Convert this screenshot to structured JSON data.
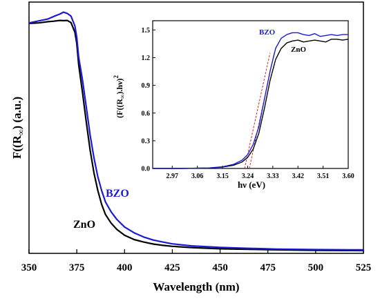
{
  "chart_data": [
    {
      "type": "line",
      "xlabel": "Wavelength (nm)",
      "ylabel": "F((R",
      "ylabel_sub": "∞",
      "ylabel_suffix": ") (a.u.)",
      "xlim": [
        350,
        525
      ],
      "ylim": [
        0,
        1.0
      ],
      "xticks": [
        350,
        375,
        400,
        425,
        450,
        475,
        500,
        525
      ],
      "yticks_shown": false,
      "series": [
        {
          "name": "BZO",
          "color": "#1a1ad6",
          "points": [
            [
              350,
              0.917
            ],
            [
              355,
              0.925
            ],
            [
              360,
              0.933
            ],
            [
              363,
              0.943
            ],
            [
              366,
              0.952
            ],
            [
              368,
              0.96
            ],
            [
              370,
              0.955
            ],
            [
              372,
              0.944
            ],
            [
              374,
              0.905
            ],
            [
              375,
              0.86
            ],
            [
              376,
              0.78
            ],
            [
              378,
              0.69
            ],
            [
              380,
              0.58
            ],
            [
              382,
              0.47
            ],
            [
              384,
              0.38
            ],
            [
              386,
              0.305
            ],
            [
              388,
              0.25
            ],
            [
              390,
              0.205
            ],
            [
              393,
              0.165
            ],
            [
              396,
              0.135
            ],
            [
              400,
              0.105
            ],
            [
              405,
              0.082
            ],
            [
              410,
              0.065
            ],
            [
              415,
              0.053
            ],
            [
              420,
              0.045
            ],
            [
              425,
              0.038
            ],
            [
              435,
              0.03
            ],
            [
              450,
              0.024
            ],
            [
              465,
              0.02
            ],
            [
              480,
              0.017
            ],
            [
              500,
              0.015
            ],
            [
              525,
              0.014
            ]
          ]
        },
        {
          "name": "ZnO",
          "color": "#000000",
          "points": [
            [
              350,
              0.915
            ],
            [
              355,
              0.917
            ],
            [
              360,
              0.922
            ],
            [
              363,
              0.924
            ],
            [
              366,
              0.927
            ],
            [
              368,
              0.926
            ],
            [
              370,
              0.927
            ],
            [
              372,
              0.918
            ],
            [
              374,
              0.88
            ],
            [
              375,
              0.835
            ],
            [
              376,
              0.75
            ],
            [
              378,
              0.64
            ],
            [
              380,
              0.52
            ],
            [
              382,
              0.41
            ],
            [
              384,
              0.32
            ],
            [
              386,
              0.25
            ],
            [
              388,
              0.195
            ],
            [
              390,
              0.155
            ],
            [
              393,
              0.12
            ],
            [
              396,
              0.095
            ],
            [
              400,
              0.072
            ],
            [
              405,
              0.055
            ],
            [
              410,
              0.045
            ],
            [
              415,
              0.037
            ],
            [
              420,
              0.032
            ],
            [
              425,
              0.028
            ],
            [
              435,
              0.023
            ],
            [
              450,
              0.018
            ],
            [
              465,
              0.016
            ],
            [
              480,
              0.014
            ],
            [
              500,
              0.012
            ],
            [
              525,
              0.011
            ]
          ]
        }
      ],
      "annotations": [
        {
          "text": "BZO",
          "color": "#1a1ad6"
        },
        {
          "text": "ZnO",
          "color": "#000000"
        }
      ]
    },
    {
      "type": "line",
      "xlabel": "hν (eV)",
      "ylabel": "(F((R",
      "ylabel_sub": "∞",
      "ylabel_suffix": ").hν)",
      "ylabel_sup": "2",
      "xlim": [
        2.9,
        3.6
      ],
      "ylim": [
        0,
        1.6
      ],
      "xticks": [
        2.97,
        3.06,
        3.15,
        3.24,
        3.33,
        3.42,
        3.51,
        3.6
      ],
      "xtick_labels": [
        "2.97",
        "3.06",
        "3.15",
        "3.24",
        "3.33",
        "3.42",
        "3.51",
        "3.60"
      ],
      "yticks": [
        0.0,
        0.3,
        0.6,
        0.9,
        1.2,
        1.5
      ],
      "ytick_labels": [
        "0.0",
        "0.3",
        "0.6",
        "0.9",
        "1.2",
        "1.5"
      ],
      "series": [
        {
          "name": "BZO",
          "color": "#1a1ad6",
          "points": [
            [
              2.9,
              0.0
            ],
            [
              3.0,
              0.0
            ],
            [
              3.1,
              0.005
            ],
            [
              3.15,
              0.018
            ],
            [
              3.19,
              0.045
            ],
            [
              3.22,
              0.09
            ],
            [
              3.24,
              0.15
            ],
            [
              3.26,
              0.26
            ],
            [
              3.28,
              0.45
            ],
            [
              3.3,
              0.75
            ],
            [
              3.32,
              1.05
            ],
            [
              3.34,
              1.3
            ],
            [
              3.36,
              1.41
            ],
            [
              3.38,
              1.45
            ],
            [
              3.4,
              1.47
            ],
            [
              3.42,
              1.47
            ],
            [
              3.44,
              1.45
            ],
            [
              3.46,
              1.44
            ],
            [
              3.48,
              1.46
            ],
            [
              3.5,
              1.43
            ],
            [
              3.52,
              1.44
            ],
            [
              3.54,
              1.45
            ],
            [
              3.56,
              1.44
            ],
            [
              3.58,
              1.45
            ],
            [
              3.6,
              1.45
            ]
          ]
        },
        {
          "name": "ZnO",
          "color": "#000000",
          "points": [
            [
              2.9,
              0.0
            ],
            [
              3.0,
              0.0
            ],
            [
              3.1,
              0.005
            ],
            [
              3.15,
              0.015
            ],
            [
              3.19,
              0.035
            ],
            [
              3.22,
              0.07
            ],
            [
              3.24,
              0.12
            ],
            [
              3.26,
              0.21
            ],
            [
              3.28,
              0.38
            ],
            [
              3.3,
              0.65
            ],
            [
              3.32,
              0.95
            ],
            [
              3.34,
              1.18
            ],
            [
              3.36,
              1.3
            ],
            [
              3.38,
              1.36
            ],
            [
              3.4,
              1.38
            ],
            [
              3.42,
              1.39
            ],
            [
              3.44,
              1.37
            ],
            [
              3.46,
              1.38
            ],
            [
              3.48,
              1.39
            ],
            [
              3.5,
              1.38
            ],
            [
              3.52,
              1.37
            ],
            [
              3.54,
              1.4
            ],
            [
              3.56,
              1.4
            ],
            [
              3.58,
              1.39
            ],
            [
              3.6,
              1.4
            ]
          ]
        }
      ],
      "fit_lines": [
        {
          "color": "#e02020",
          "style": "dashed",
          "x0": 3.229,
          "y0": 0.0,
          "x1": 3.32,
          "y1": 1.25
        },
        {
          "color": "#e02020",
          "style": "dashed",
          "x0": 3.246,
          "y0": 0.0,
          "x1": 3.335,
          "y1": 1.25
        }
      ],
      "annotations": [
        {
          "text": "BZO",
          "color": "#1a1ad6"
        },
        {
          "text": "ZnO",
          "color": "#000000"
        }
      ]
    }
  ]
}
